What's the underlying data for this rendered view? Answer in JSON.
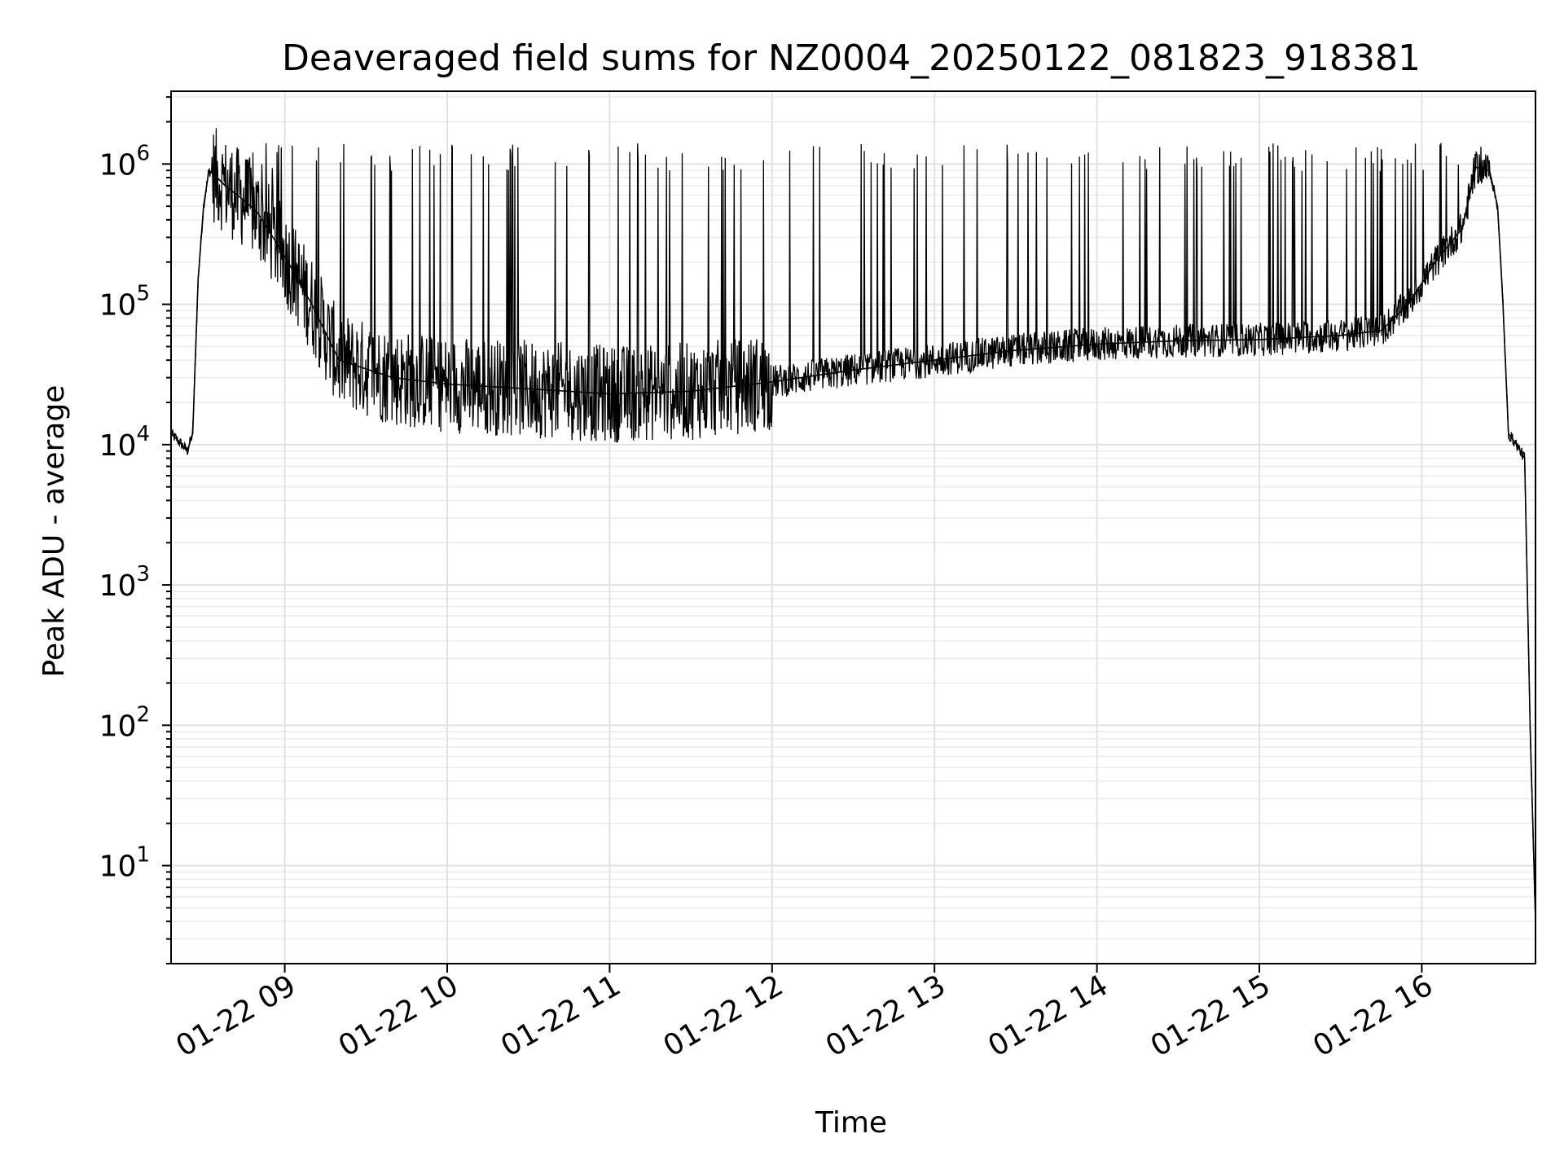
{
  "chart_data": {
    "type": "line",
    "title": "Deaveraged field sums for NZ0004_20250122_081823_918381",
    "xlabel": "Time",
    "ylabel": "Peak ADU - average",
    "x_scale": "time",
    "y_scale": "log",
    "xlim": [
      "2025-01-22 08:18",
      "2025-01-22 16:42"
    ],
    "ylim": [
      2,
      3300000
    ],
    "grid": true,
    "x_ticks": [
      "01-22 09",
      "01-22 10",
      "01-22 11",
      "01-22 12",
      "01-22 13",
      "01-22 14",
      "01-22 15",
      "01-22 16"
    ],
    "y_ticks": [
      {
        "base": "10",
        "exp": "1",
        "value": 10
      },
      {
        "base": "10",
        "exp": "2",
        "value": 100
      },
      {
        "base": "10",
        "exp": "3",
        "value": 1000
      },
      {
        "base": "10",
        "exp": "4",
        "value": 10000
      },
      {
        "base": "10",
        "exp": "5",
        "value": 100000
      },
      {
        "base": "10",
        "exp": "6",
        "value": 1000000
      }
    ],
    "series": [
      {
        "color": "#000000",
        "x": [
          "2025-01-22 08:18",
          "2025-01-22 08:22",
          "2025-01-22 08:24",
          "2025-01-22 08:26",
          "2025-01-22 08:28",
          "2025-01-22 08:30",
          "2025-01-22 08:32",
          "2025-01-22 08:35",
          "2025-01-22 08:38",
          "2025-01-22 08:45",
          "2025-01-22 08:50",
          "2025-01-22 09:00",
          "2025-01-22 09:10",
          "2025-01-22 09:20",
          "2025-01-22 09:40",
          "2025-01-22 10:00",
          "2025-01-22 10:30",
          "2025-01-22 11:00",
          "2025-01-22 11:30",
          "2025-01-22 12:00",
          "2025-01-22 12:30",
          "2025-01-22 13:00",
          "2025-01-22 13:30",
          "2025-01-22 14:00",
          "2025-01-22 14:30",
          "2025-01-22 15:00",
          "2025-01-22 15:30",
          "2025-01-22 15:45",
          "2025-01-22 15:55",
          "2025-01-22 16:05",
          "2025-01-22 16:15",
          "2025-01-22 16:20",
          "2025-01-22 16:25",
          "2025-01-22 16:28",
          "2025-01-22 16:30",
          "2025-01-22 16:32",
          "2025-01-22 16:35",
          "2025-01-22 16:38",
          "2025-01-22 16:40",
          "2025-01-22 16:42"
        ],
        "y": [
          12000,
          10000,
          9000,
          12000,
          150000,
          500000,
          900000,
          800000,
          700000,
          550000,
          450000,
          220000,
          100000,
          40000,
          30000,
          27000,
          25000,
          23000,
          24000,
          28000,
          34000,
          40000,
          47000,
          52000,
          55000,
          56000,
          60000,
          65000,
          100000,
          200000,
          350000,
          950000,
          900000,
          500000,
          100000,
          12000,
          10000,
          8000,
          100,
          4
        ]
      }
    ],
    "annotations": "background noise band with frequent spikes up to about 1e6 across the run"
  }
}
